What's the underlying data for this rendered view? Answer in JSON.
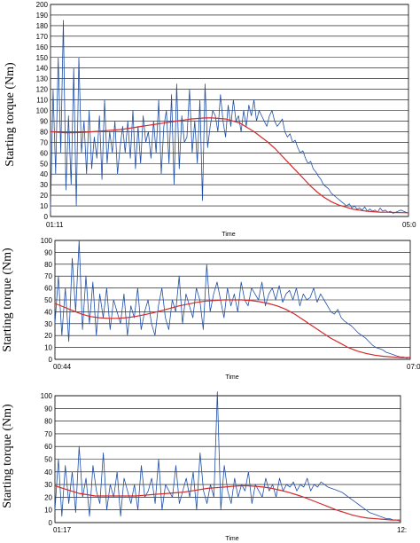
{
  "colors": {
    "raw_series": "#1f4fa8",
    "trend_series": "#d42a2a",
    "grid": "#000000",
    "background": "#ffffff"
  },
  "chart_data": [
    {
      "type": "line",
      "title": "",
      "ylabel": "Starting torque (Nm)",
      "xlabel": "Time",
      "ylim": [
        0,
        200
      ],
      "yticks": [
        0,
        10,
        20,
        30,
        40,
        50,
        60,
        70,
        80,
        90,
        100,
        110,
        120,
        130,
        140,
        150,
        160,
        170,
        180,
        190,
        200
      ],
      "x_start_label": "01:11",
      "x_end_label": "05:0",
      "grid": true,
      "series": [
        {
          "role": "measured",
          "values": [
            5,
            120,
            40,
            150,
            60,
            185,
            25,
            95,
            30,
            140,
            10,
            150,
            60,
            90,
            40,
            100,
            45,
            75,
            55,
            95,
            35,
            110,
            50,
            80,
            60,
            90,
            40,
            65,
            85,
            60,
            90,
            55,
            100,
            45,
            85,
            50,
            95,
            70,
            80,
            55,
            90,
            60,
            110,
            40,
            85,
            100,
            50,
            115,
            30,
            125,
            45,
            95,
            70,
            75,
            120,
            60,
            90,
            50,
            110,
            15,
            125,
            65,
            85,
            100,
            95,
            80,
            115,
            90,
            75,
            105,
            85,
            110,
            90,
            95,
            80,
            100,
            85,
            105,
            95,
            110,
            90,
            100,
            95,
            90,
            85,
            95,
            100,
            90,
            85,
            88,
            92,
            80,
            75,
            78,
            70,
            72,
            65,
            60,
            62,
            55,
            50,
            52,
            45,
            42,
            38,
            35,
            30,
            28,
            26,
            22,
            20,
            18,
            16,
            14,
            12,
            10,
            12,
            8,
            10,
            7,
            8,
            6,
            9,
            5,
            7,
            5,
            6,
            4,
            8,
            5,
            6,
            4,
            5,
            3,
            4,
            5,
            6,
            5,
            4,
            3
          ]
        },
        {
          "role": "trend",
          "values": [
            80,
            79.5,
            79,
            79,
            79.2,
            79.5,
            80,
            80.5,
            81,
            81.5,
            82,
            83,
            84,
            85,
            86,
            87,
            88,
            89,
            90,
            91,
            92,
            92.5,
            93,
            93,
            92.5,
            92,
            90,
            88,
            84,
            80,
            75,
            70,
            64,
            57,
            50,
            43,
            36,
            29,
            23,
            18,
            14,
            11,
            9,
            7,
            6,
            5,
            4.5,
            4,
            4,
            3.8,
            3.6,
            3.5
          ]
        }
      ]
    },
    {
      "type": "line",
      "title": "",
      "ylabel": "Starting torque (Nm)",
      "xlabel": "Time",
      "ylim": [
        0,
        100
      ],
      "yticks": [
        0,
        10,
        20,
        30,
        40,
        50,
        60,
        70,
        80,
        90,
        100
      ],
      "x_start_label": "00:44",
      "x_end_label": "07:0",
      "grid": true,
      "series": [
        {
          "role": "measured",
          "values": [
            30,
            70,
            20,
            60,
            15,
            85,
            40,
            100,
            25,
            70,
            30,
            65,
            20,
            55,
            35,
            60,
            25,
            50,
            40,
            30,
            55,
            20,
            45,
            35,
            60,
            25,
            40,
            50,
            30,
            20,
            45,
            60,
            35,
            25,
            50,
            40,
            70,
            30,
            55,
            45,
            35,
            60,
            50,
            25,
            80,
            40,
            55,
            65,
            50,
            35,
            60,
            45,
            55,
            40,
            65,
            50,
            45,
            60,
            55,
            50,
            65,
            45,
            55,
            60,
            50,
            62,
            48,
            55,
            58,
            50,
            60,
            45,
            55,
            50,
            52,
            60,
            48,
            55,
            50,
            45,
            40,
            38,
            42,
            35,
            32,
            30,
            28,
            25,
            22,
            20,
            18,
            15,
            12,
            10,
            9,
            8,
            6,
            5,
            4,
            3,
            2,
            2,
            1,
            2
          ]
        },
        {
          "role": "trend",
          "values": [
            47,
            44,
            41,
            38,
            36,
            35,
            34.5,
            34.5,
            35,
            36,
            37.5,
            39,
            41,
            43,
            45,
            46.5,
            48,
            49,
            49.5,
            50,
            50,
            50,
            49.5,
            48.5,
            47,
            45,
            42,
            38,
            33,
            28,
            23,
            18,
            14,
            10,
            7,
            5,
            3.5,
            2.5,
            2,
            1.5,
            1.5
          ]
        }
      ]
    },
    {
      "type": "line",
      "title": "",
      "ylabel": "Starting  torque (Nm)",
      "xlabel": "Time",
      "ylim": [
        0,
        100
      ],
      "yticks": [
        0,
        10,
        20,
        30,
        40,
        50,
        60,
        70,
        80,
        90,
        100
      ],
      "x_start_label": "01:17",
      "x_end_label": "12:",
      "grid": true,
      "series": [
        {
          "role": "measured",
          "values": [
            10,
            50,
            5,
            45,
            15,
            40,
            8,
            60,
            20,
            35,
            5,
            45,
            25,
            15,
            55,
            10,
            30,
            20,
            40,
            5,
            35,
            25,
            15,
            30,
            10,
            45,
            20,
            25,
            35,
            15,
            50,
            10,
            30,
            25,
            20,
            45,
            15,
            25,
            35,
            20,
            40,
            10,
            55,
            25,
            15,
            30,
            20,
            103,
            10,
            45,
            25,
            15,
            35,
            20,
            30,
            25,
            40,
            15,
            30,
            25,
            20,
            35,
            25,
            30,
            20,
            35,
            25,
            30,
            28,
            32,
            25,
            30,
            28,
            35,
            25,
            30,
            28,
            32,
            30,
            28,
            27,
            26,
            25,
            24,
            22,
            20,
            18,
            16,
            14,
            12,
            10,
            8,
            7,
            6,
            5,
            4,
            3,
            3,
            2,
            2,
            1
          ]
        },
        {
          "role": "trend",
          "values": [
            29,
            27,
            25,
            23,
            22,
            21,
            21,
            21,
            21,
            21,
            21,
            21.5,
            22,
            22.5,
            23,
            23.5,
            24,
            25,
            26,
            27,
            27.5,
            28,
            28.5,
            29,
            29,
            28.5,
            28,
            27,
            25.5,
            24,
            22,
            20,
            17.5,
            15,
            12.5,
            10,
            8,
            6,
            4.5,
            3.5,
            3,
            2.5,
            2,
            2
          ]
        }
      ]
    }
  ]
}
